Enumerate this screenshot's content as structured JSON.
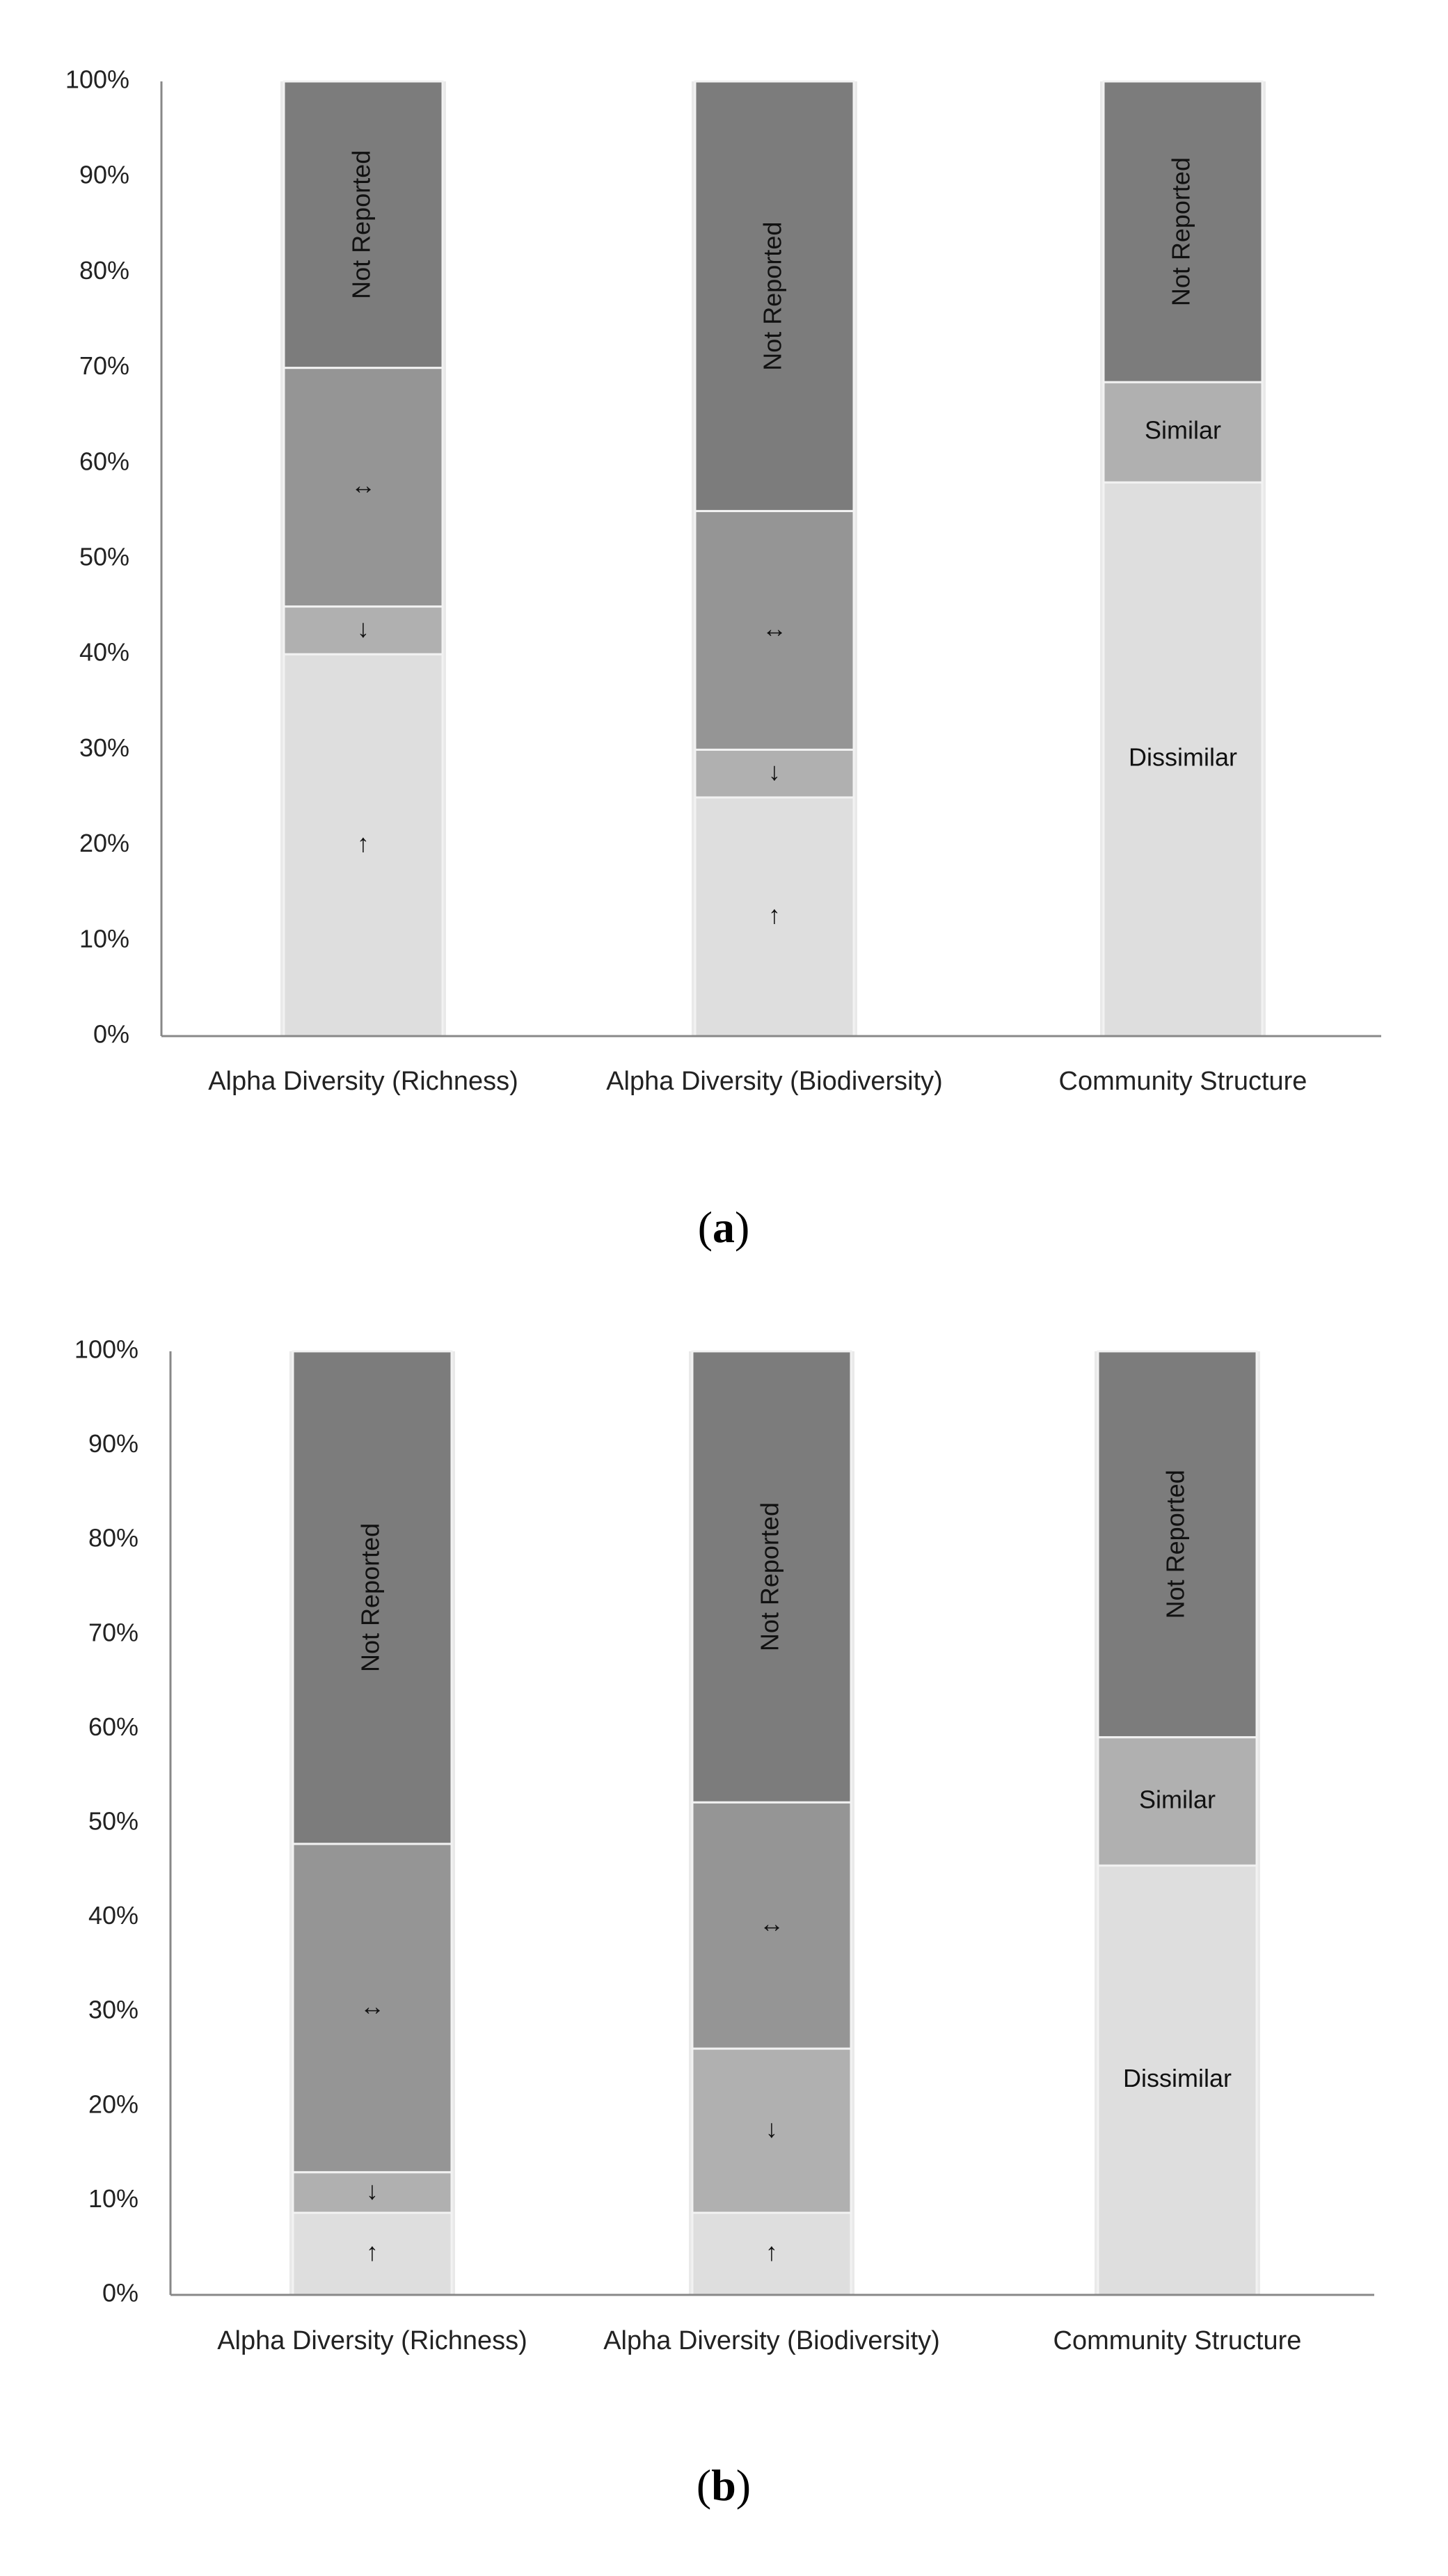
{
  "chart_data": [
    {
      "type": "bar",
      "stacked": true,
      "caption": "(a)",
      "y_ticks": [
        "0%",
        "10%",
        "20%",
        "30%",
        "40%",
        "50%",
        "60%",
        "70%",
        "80%",
        "90%",
        "100%"
      ],
      "ylim": [
        0,
        100
      ],
      "categories": [
        "Alpha Diversity (Richness)",
        "Alpha Diversity (Biodiversity)",
        "Community Structure"
      ],
      "bars": [
        {
          "category": "Alpha Diversity (Richness)",
          "segments": [
            {
              "label": "↑",
              "value": 40,
              "color": "#dedede"
            },
            {
              "label": "↓",
              "value": 5,
              "color": "#b0b0b0"
            },
            {
              "label": "↔",
              "value": 25,
              "color": "#959595"
            },
            {
              "label": "Not Reported",
              "value": 30,
              "color": "#7c7c7c"
            }
          ]
        },
        {
          "category": "Alpha Diversity (Biodiversity)",
          "segments": [
            {
              "label": "↑",
              "value": 25,
              "color": "#dedede"
            },
            {
              "label": "↓",
              "value": 5,
              "color": "#b0b0b0"
            },
            {
              "label": "↔",
              "value": 25,
              "color": "#959595"
            },
            {
              "label": "Not Reported",
              "value": 45,
              "color": "#7c7c7c"
            }
          ]
        },
        {
          "category": "Community Structure",
          "segments": [
            {
              "label": "Dissimilar",
              "value": 58,
              "color": "#dedede"
            },
            {
              "label": "Similar",
              "value": 10.5,
              "color": "#b0b0b0"
            },
            {
              "label": "Not Reported",
              "value": 31.5,
              "color": "#7c7c7c"
            }
          ]
        }
      ]
    },
    {
      "type": "bar",
      "stacked": true,
      "caption": "(b)",
      "y_ticks": [
        "0%",
        "10%",
        "20%",
        "30%",
        "40%",
        "50%",
        "60%",
        "70%",
        "80%",
        "90%",
        "100%"
      ],
      "ylim": [
        0,
        100
      ],
      "categories": [
        "Alpha Diversity (Richness)",
        "Alpha Diversity (Biodiversity)",
        "Community Structure"
      ],
      "bars": [
        {
          "category": "Alpha Diversity (Richness)",
          "segments": [
            {
              "label": "↑",
              "value": 8.7,
              "color": "#dedede"
            },
            {
              "label": "↓",
              "value": 4.3,
              "color": "#b0b0b0"
            },
            {
              "label": "↔",
              "value": 34.8,
              "color": "#959595"
            },
            {
              "label": "Not Reported",
              "value": 52.2,
              "color": "#7c7c7c"
            }
          ]
        },
        {
          "category": "Alpha Diversity (Biodiversity)",
          "segments": [
            {
              "label": "↑",
              "value": 8.7,
              "color": "#dedede"
            },
            {
              "label": "↓",
              "value": 17.4,
              "color": "#b0b0b0"
            },
            {
              "label": "↔",
              "value": 26.1,
              "color": "#959595"
            },
            {
              "label": "Not Reported",
              "value": 47.8,
              "color": "#7c7c7c"
            }
          ]
        },
        {
          "category": "Community Structure",
          "segments": [
            {
              "label": "Dissimilar",
              "value": 45.5,
              "color": "#dedede"
            },
            {
              "label": "Similar",
              "value": 13.6,
              "color": "#b0b0b0"
            },
            {
              "label": "Not Reported",
              "value": 40.9,
              "color": "#7c7c7c"
            }
          ]
        }
      ]
    }
  ]
}
